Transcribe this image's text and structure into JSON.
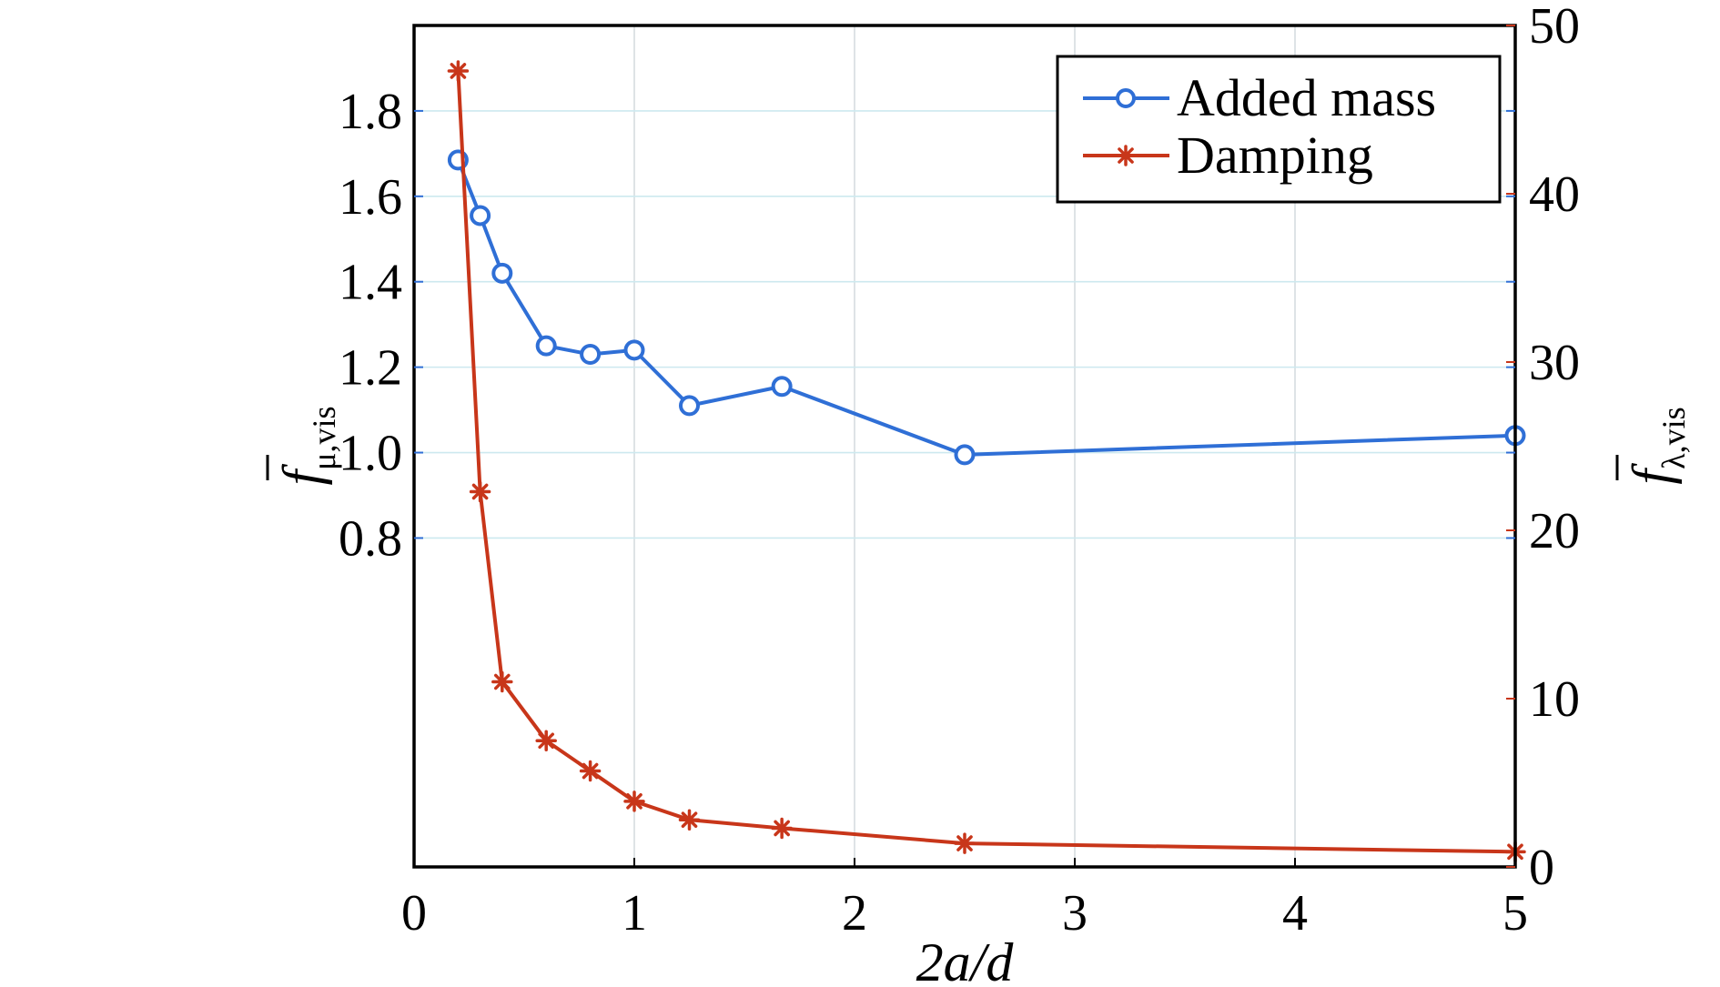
{
  "chart_data": {
    "type": "line",
    "xlabel": "2a/d",
    "x_ticks": [
      "0",
      "1",
      "2",
      "3",
      "4",
      "5"
    ],
    "xlim": [
      0,
      5
    ],
    "y_left": {
      "label_main": "f",
      "label_sub": "μ,vis",
      "ticks": [
        "0.8",
        "1.0",
        "1.2",
        "1.4",
        "1.6",
        "1.8"
      ],
      "ylim": [
        0.03,
        2.0
      ]
    },
    "y_right": {
      "label_main": "f",
      "label_sub": "λ,vis",
      "ticks": [
        "0",
        "10",
        "20",
        "30",
        "40",
        "50"
      ],
      "ylim": [
        0,
        50
      ]
    },
    "grid": true,
    "legend_position": "top-right",
    "series": [
      {
        "name": "Added mass",
        "axis": "left",
        "marker": "circle",
        "color": "#2F6FD6",
        "x": [
          0.2,
          0.3,
          0.4,
          0.6,
          0.8,
          1.0,
          1.25,
          1.67,
          2.5,
          5.0
        ],
        "y": [
          1.685,
          1.555,
          1.42,
          1.25,
          1.23,
          1.24,
          1.11,
          1.155,
          0.995,
          1.04
        ]
      },
      {
        "name": "Damping",
        "axis": "right",
        "marker": "asterisk",
        "color": "#C8361A",
        "x": [
          0.2,
          0.3,
          0.4,
          0.6,
          0.8,
          1.0,
          1.25,
          1.67,
          2.5,
          5.0
        ],
        "y": [
          47.3,
          22.3,
          11.0,
          7.5,
          5.7,
          3.9,
          2.8,
          2.3,
          1.4,
          0.9
        ]
      }
    ]
  },
  "colors": {
    "grid": "#CDE9EF",
    "grid_vertical": "#D6DCE0",
    "left_tick": "#2F6FD6",
    "right_tick": "#C8361A"
  }
}
